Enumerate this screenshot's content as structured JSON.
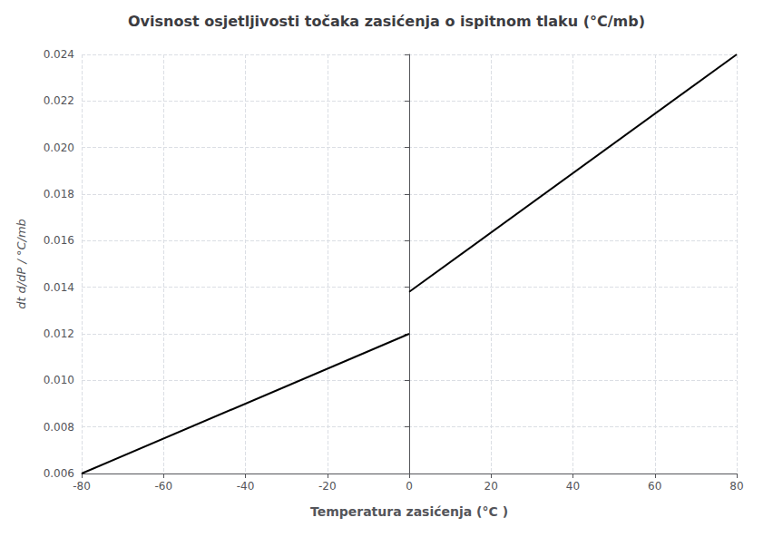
{
  "chart_data": {
    "type": "line",
    "title": "Ovisnost osjetljivosti točaka zasićenja o ispitnom tlaku (°C/mb)",
    "xlabel": "Temperatura zasićenja (°C )",
    "ylabel": "dt d/dP / °C/mb",
    "color": "#000000",
    "series": [
      {
        "x": [
          -80,
          0
        ],
        "values": [
          0.006,
          0.012
        ]
      },
      {
        "x": [
          0,
          80
        ],
        "values": [
          0.0138,
          0.024
        ]
      }
    ],
    "xlim": [
      -80,
      80
    ],
    "ylim": [
      0.006,
      0.024
    ],
    "xticks": [
      -80,
      -60,
      -40,
      -20,
      0,
      20,
      40,
      60,
      80
    ],
    "yticks": [
      0.006,
      0.008,
      {
        "value": 0.01,
        "label": "0.010"
      },
      0.012,
      0.014,
      0.016,
      0.018,
      {
        "value": 0.02,
        "label": "0.020"
      },
      0.022,
      0.024
    ],
    "grid": true
  }
}
